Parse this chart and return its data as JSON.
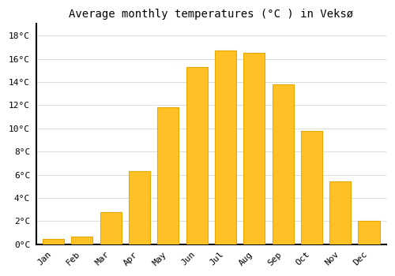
{
  "title": "Average monthly temperatures (°C ) in Veksø",
  "months": [
    "Jan",
    "Feb",
    "Mar",
    "Apr",
    "May",
    "Jun",
    "Jul",
    "Aug",
    "Sep",
    "Oct",
    "Nov",
    "Dec"
  ],
  "temperatures": [
    0.5,
    0.7,
    2.8,
    6.3,
    11.8,
    15.3,
    16.7,
    16.5,
    13.8,
    9.8,
    5.4,
    2.0
  ],
  "bar_color": "#FFC125",
  "bar_edge_color": "#E8A800",
  "ylim": [
    0,
    19
  ],
  "yticks": [
    0,
    2,
    4,
    6,
    8,
    10,
    12,
    14,
    16,
    18
  ],
  "ytick_labels": [
    "0°C",
    "2°C",
    "4°C",
    "6°C",
    "8°C",
    "10°C",
    "12°C",
    "14°C",
    "16°C",
    "18°C"
  ],
  "bg_color": "#ffffff",
  "grid_color": "#dddddd",
  "title_fontsize": 10,
  "tick_fontsize": 8,
  "bar_width": 0.75
}
